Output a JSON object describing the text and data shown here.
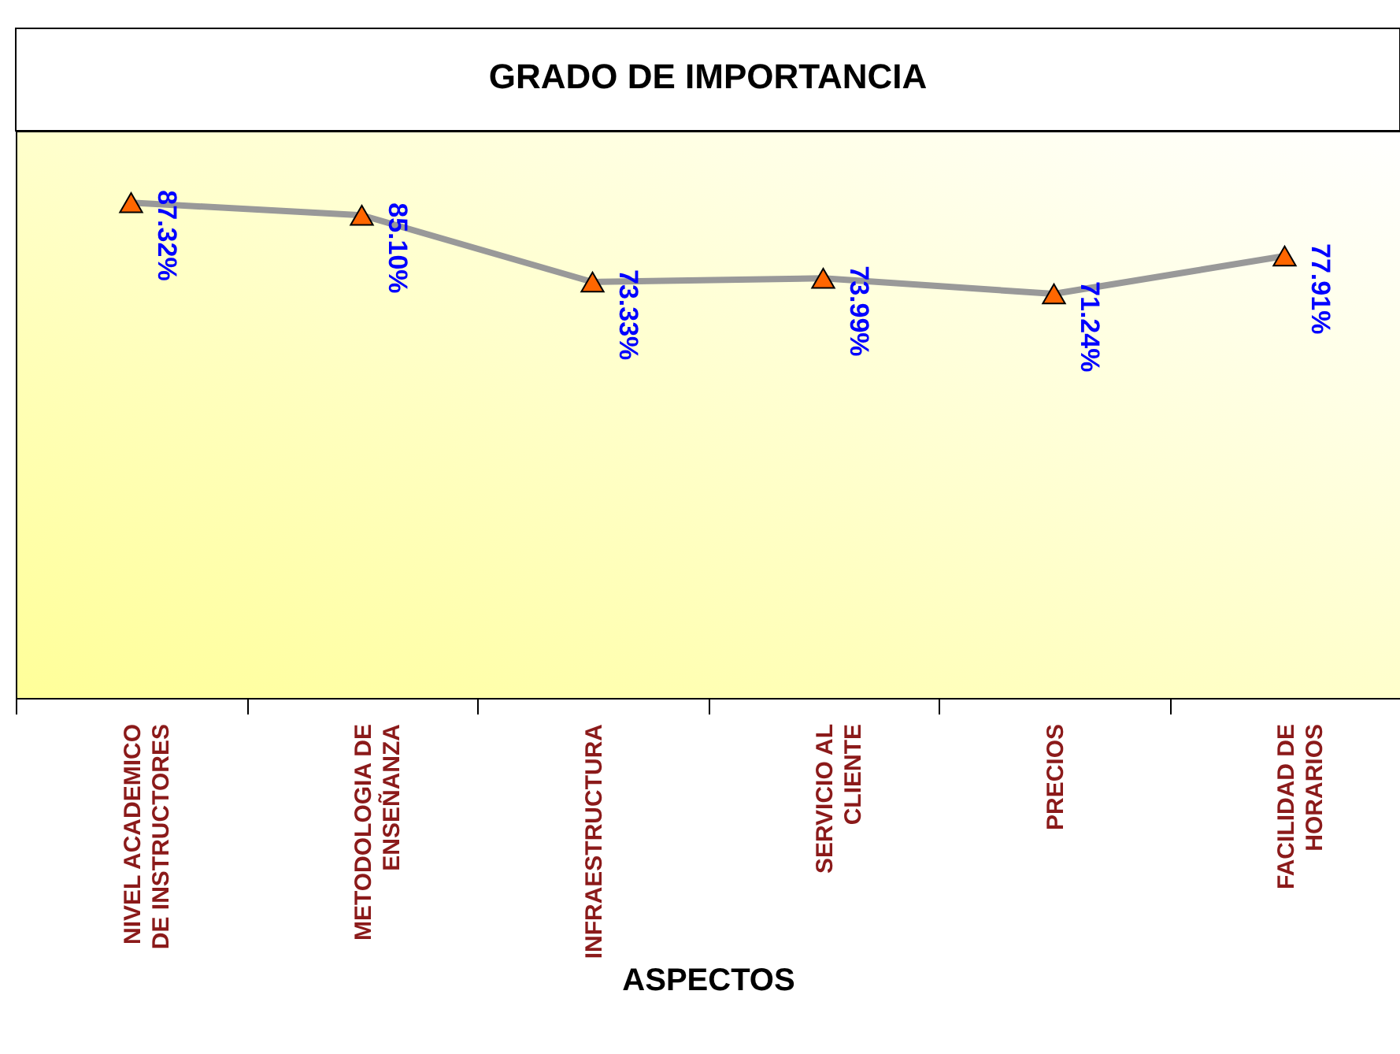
{
  "chart_data": {
    "type": "line",
    "title": "GRADO DE IMPORTANCIA",
    "xlabel": "ASPECTOS",
    "categories": [
      "NIVEL ACADEMICO DE INSTRUCTORES",
      "METODOLOGIA DE ENSEÑANZA",
      "INFRAESTRUCTURA",
      "SERVICIO AL CLIENTE",
      "PRECIOS",
      "FACILIDAD DE HORARIOS"
    ],
    "series": [
      {
        "color": "#999999",
        "values": [
          87.32,
          85.1,
          73.33,
          73.99,
          71.24,
          77.91
        ],
        "value_labels": [
          "87.32%",
          "85.10%",
          "73.33%",
          "73.99%",
          "71.24%",
          "77.91%"
        ]
      }
    ],
    "ylim": [
      0,
      100
    ],
    "tick_labels": "x",
    "marker": "triangle"
  }
}
